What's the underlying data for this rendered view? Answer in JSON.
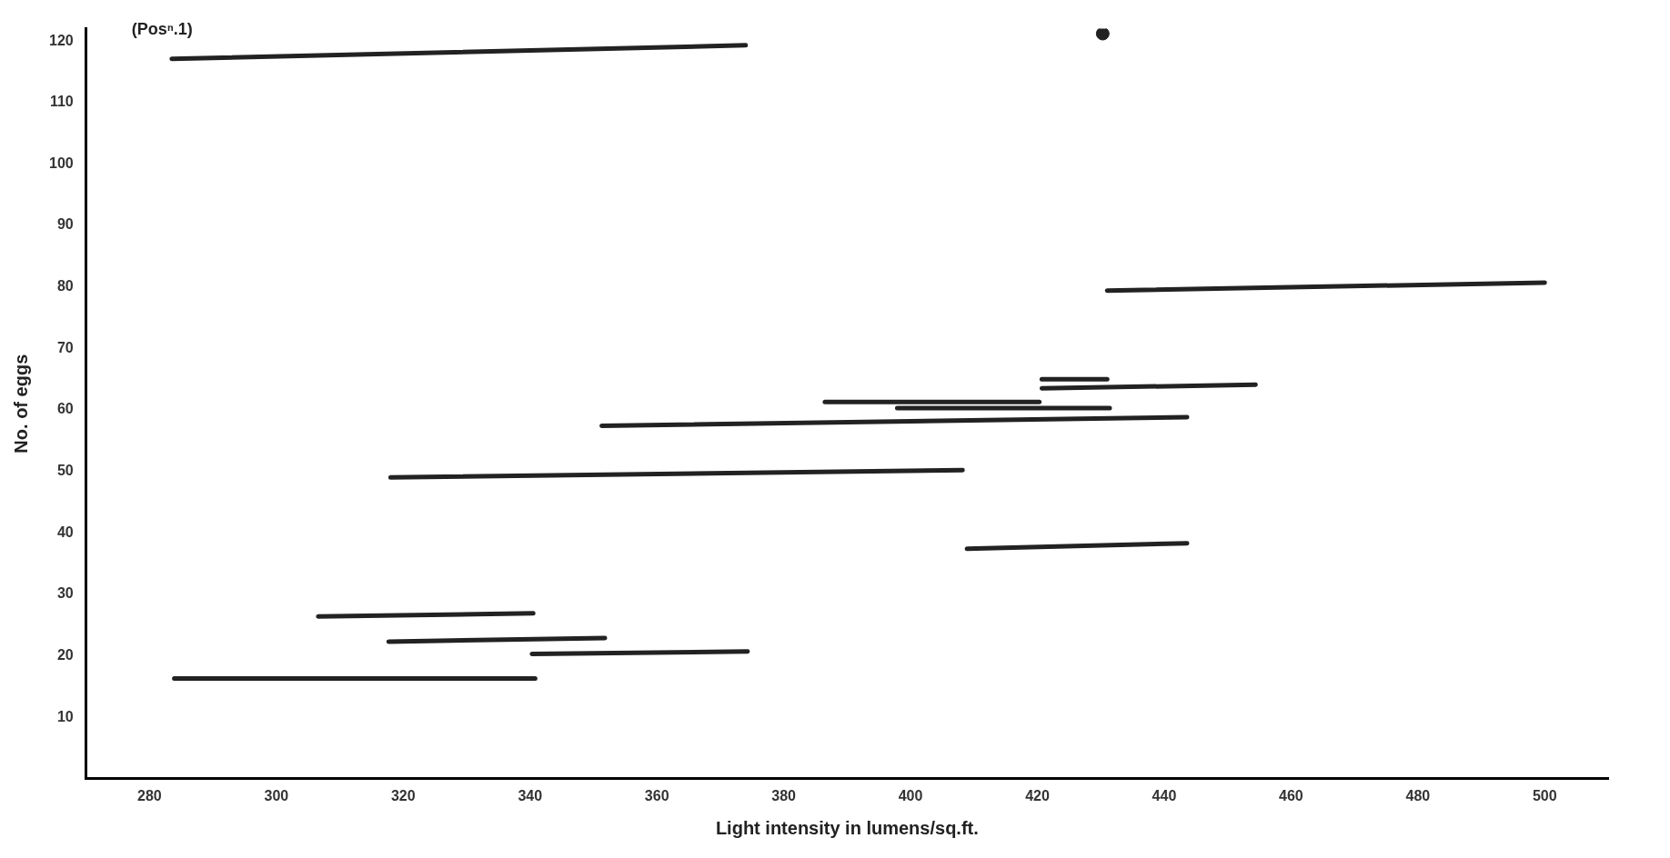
{
  "chart_data": {
    "type": "line",
    "xlabel": "Light intensity in lumens/sq.ft.",
    "ylabel": "No. of eggs",
    "annotations": [
      "(Posⁿ.1)"
    ],
    "xlim": [
      270,
      510
    ],
    "ylim": [
      0,
      122
    ],
    "xticks": [
      280,
      300,
      320,
      340,
      360,
      380,
      400,
      420,
      440,
      460,
      480,
      500
    ],
    "yticks": [
      10,
      20,
      30,
      40,
      50,
      60,
      70,
      80,
      90,
      100,
      110,
      120
    ],
    "grid": false,
    "legend": false,
    "marker": "none",
    "line_style": "solid",
    "series": [
      {
        "color": "#222222",
        "x": [
          283.5,
          374
        ],
        "values": [
          117.1,
          119.3
        ]
      },
      {
        "color": "#222222",
        "x": [
          431,
          500
        ],
        "values": [
          79.4,
          80.7
        ]
      },
      {
        "color": "#222222",
        "x": [
          420.7,
          431
        ],
        "values": [
          65,
          65
        ]
      },
      {
        "color": "#222222",
        "x": [
          420.7,
          454.4
        ],
        "values": [
          63.5,
          64.1
        ]
      },
      {
        "color": "#222222",
        "x": [
          386.5,
          420.3
        ],
        "values": [
          61.3,
          61.3
        ]
      },
      {
        "color": "#222222",
        "x": [
          397.9,
          431.4
        ],
        "values": [
          60.3,
          60.3
        ]
      },
      {
        "color": "#222222",
        "x": [
          351.3,
          443.6
        ],
        "values": [
          57.4,
          58.8
        ]
      },
      {
        "color": "#222222",
        "x": [
          318,
          408.2
        ],
        "values": [
          49,
          50.2
        ]
      },
      {
        "color": "#222222",
        "x": [
          408.9,
          443.6
        ],
        "values": [
          37.4,
          38.3
        ]
      },
      {
        "color": "#222222",
        "x": [
          306.6,
          340.5
        ],
        "values": [
          26.4,
          26.9
        ]
      },
      {
        "color": "#222222",
        "x": [
          317.7,
          351.8
        ],
        "values": [
          22.3,
          22.9
        ]
      },
      {
        "color": "#222222",
        "x": [
          340.3,
          374.3
        ],
        "values": [
          20.3,
          20.7
        ]
      },
      {
        "color": "#222222",
        "x": [
          283.9,
          340.8
        ],
        "values": [
          16.3,
          16.3
        ]
      },
      {
        "type": "scatter",
        "color": "#222222",
        "x": [
          430.3
        ],
        "values": [
          121.2
        ],
        "marker": "circle"
      }
    ]
  }
}
